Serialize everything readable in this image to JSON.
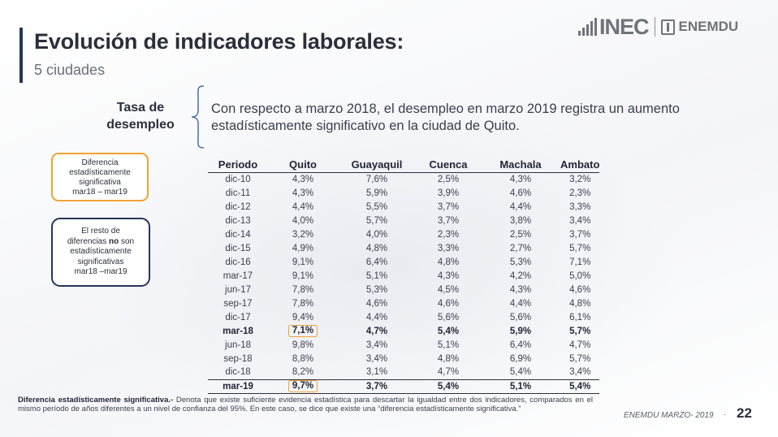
{
  "header": {
    "title": "Evolución de indicadores laborales:",
    "subtitle": "5 ciudades",
    "logo": {
      "inec": "INEC",
      "enemdu": "ENEMDU"
    }
  },
  "highlight": {
    "label_line1": "Tasa de",
    "label_line2": "desempleo",
    "statement": "Con respecto a marzo 2018, el desempleo en marzo 2019 registra un aumento estadísticamente significativo en la ciudad de Quito."
  },
  "legend": {
    "significant": [
      "Diferencia",
      "estadísticamente",
      "significativa",
      "mar18 – mar19"
    ],
    "significant_color": "#f0a233",
    "not_significant": {
      "line1": "El resto de",
      "line2_pre": "diferencias ",
      "line2_bold": "no",
      "line2_post": " son",
      "line3": "estadísticamente",
      "line4": "significativas",
      "line5": "mar18 –mar19"
    },
    "not_significant_color": "#25365a"
  },
  "table": {
    "columns": [
      "Periodo",
      "Quito",
      "Guayaquil",
      "Cuenca",
      "Machala",
      "Ambato"
    ],
    "rows": [
      [
        "dic-10",
        "4,3%",
        "7,6%",
        "2,5%",
        "4,3%",
        "3,2%"
      ],
      [
        "dic-11",
        "4,3%",
        "5,9%",
        "3,9%",
        "4,6%",
        "2,3%"
      ],
      [
        "dic-12",
        "4,4%",
        "5,5%",
        "3,7%",
        "4,4%",
        "3,3%"
      ],
      [
        "dic-13",
        "4,0%",
        "5,7%",
        "3,7%",
        "3,8%",
        "3,4%"
      ],
      [
        "dic-14",
        "3,2%",
        "4,0%",
        "2,3%",
        "2,5%",
        "3,7%"
      ],
      [
        "dic-15",
        "4,9%",
        "4,8%",
        "3,3%",
        "2,7%",
        "5,7%"
      ],
      [
        "dic-16",
        "9,1%",
        "6,4%",
        "4,8%",
        "5,3%",
        "7,1%"
      ],
      [
        "mar-17",
        "9,1%",
        "5,1%",
        "4,3%",
        "4,2%",
        "5,0%"
      ],
      [
        "jun-17",
        "7,8%",
        "5,3%",
        "4,5%",
        "4,3%",
        "4,6%"
      ],
      [
        "sep-17",
        "7,8%",
        "4,6%",
        "4,6%",
        "4,4%",
        "4,8%"
      ],
      [
        "dic-17",
        "9,4%",
        "4,4%",
        "5,6%",
        "5,6%",
        "6,1%"
      ],
      [
        "mar-18",
        "7,1%",
        "4,7%",
        "5,4%",
        "5,9%",
        "5,7%"
      ],
      [
        "jun-18",
        "9,8%",
        "3,4%",
        "5,1%",
        "6,4%",
        "4,7%"
      ],
      [
        "sep-18",
        "8,8%",
        "3,4%",
        "4,8%",
        "6,9%",
        "5,7%"
      ],
      [
        "dic-18",
        "8,2%",
        "3,1%",
        "4,7%",
        "5,4%",
        "3,4%"
      ],
      [
        "mar-19",
        "9,7%",
        "3,7%",
        "5,4%",
        "5,1%",
        "5,4%"
      ]
    ],
    "bold_rows": [
      "mar-18",
      "mar-19"
    ],
    "highlighted_cells": [
      [
        11,
        1
      ],
      [
        15,
        1
      ]
    ]
  },
  "footnote": {
    "term": "Diferencia estadísticamente significativa.-",
    "text": " Denota que existe suficiente evidencia estadística para descartar la igualdad entre dos indicadores, comparados en el mismo período de años diferentes a un nivel de confianza del 95%. En este caso, se dice que existe una “diferencia estadísticamente significativa.”"
  },
  "footer": {
    "source": "ENEMDU MARZO- 2019",
    "separator": "·",
    "page": "22"
  }
}
